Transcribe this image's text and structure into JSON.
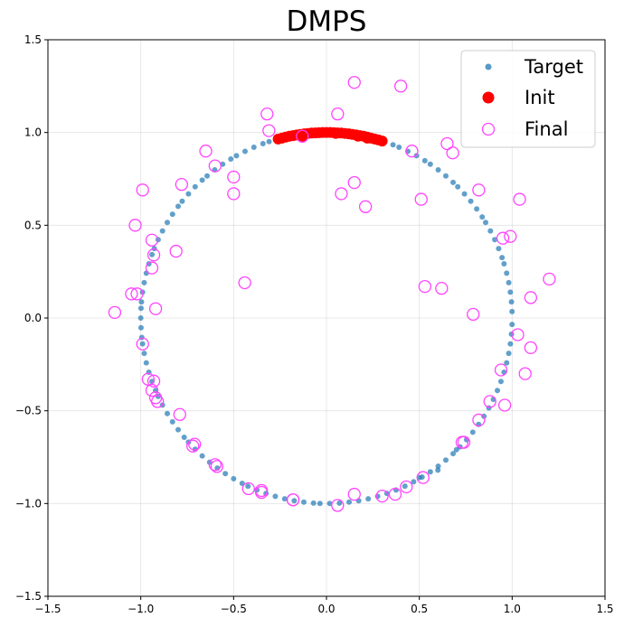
{
  "chart_data": {
    "type": "scatter",
    "title": "DMPS",
    "xlabel": "",
    "ylabel": "",
    "xlim": [
      -1.5,
      1.5
    ],
    "ylim": [
      -1.5,
      1.5
    ],
    "xticks": [
      "−1.5",
      "−1.0",
      "−0.5",
      "0.0",
      "0.5",
      "1.0",
      "1.5"
    ],
    "yticks": [
      "−1.5",
      "−1.0",
      "−0.5",
      "0.0",
      "0.5",
      "1.0",
      "1.5"
    ],
    "xtick_values": [
      -1.5,
      -1.0,
      -0.5,
      0.0,
      0.5,
      1.0,
      1.5
    ],
    "ytick_values": [
      -1.5,
      -1.0,
      -0.5,
      0.0,
      0.5,
      1.0,
      1.5
    ],
    "grid": true,
    "legend_position": "top-right",
    "series": [
      {
        "name": "Target",
        "marker": "small-filled-circle",
        "color": "#1f77b4",
        "target_circle_angles_deg": [
          2,
          5,
          8,
          11,
          14,
          17,
          19,
          22,
          25,
          28,
          31,
          33,
          36,
          39,
          42,
          45,
          47,
          50,
          53,
          56,
          58,
          61,
          64,
          67,
          69,
          72,
          75,
          78,
          80,
          83,
          86,
          88,
          91,
          94,
          97,
          99,
          102,
          105,
          108,
          110,
          113,
          116,
          119,
          121,
          124,
          127,
          130,
          132,
          135,
          138,
          141,
          143,
          146,
          149,
          152,
          155,
          158,
          160,
          163,
          166,
          169,
          172,
          175,
          177,
          180,
          183,
          186,
          188,
          191,
          194,
          197,
          200,
          203,
          205,
          208,
          211,
          214,
          217,
          220,
          222,
          225,
          228,
          231,
          234,
          237,
          240,
          243,
          245,
          248,
          251,
          254,
          257,
          260,
          263,
          266,
          268,
          271,
          274,
          277,
          280,
          283,
          286,
          289,
          292,
          295,
          298,
          301,
          304,
          307,
          310,
          313,
          316,
          319,
          322,
          325,
          328,
          331,
          334,
          337,
          340,
          343,
          346,
          349,
          352,
          355,
          358
        ],
        "points": [
          [
            0.6,
            -0.82
          ],
          [
            0.7,
            -0.71
          ],
          [
            0.5,
            -0.86
          ]
        ]
      },
      {
        "name": "Init",
        "marker": "large-filled-circle",
        "color": "#ff0000",
        "points": [
          [
            -0.26,
            0.965
          ],
          [
            -0.24,
            0.97
          ],
          [
            -0.22,
            0.975
          ],
          [
            -0.2,
            0.98
          ],
          [
            -0.18,
            0.983
          ],
          [
            -0.16,
            0.987
          ],
          [
            -0.14,
            0.99
          ],
          [
            -0.12,
            0.993
          ],
          [
            -0.1,
            0.995
          ],
          [
            -0.08,
            0.997
          ],
          [
            -0.06,
            0.998
          ],
          [
            -0.04,
            0.999
          ],
          [
            -0.02,
            1.0
          ],
          [
            0.0,
            1.0
          ],
          [
            0.02,
            1.0
          ],
          [
            0.04,
            0.999
          ],
          [
            0.06,
            0.998
          ],
          [
            0.08,
            0.997
          ],
          [
            0.1,
            0.995
          ],
          [
            0.12,
            0.993
          ],
          [
            0.14,
            0.99
          ],
          [
            0.16,
            0.987
          ],
          [
            0.18,
            0.983
          ],
          [
            0.2,
            0.98
          ],
          [
            0.22,
            0.975
          ],
          [
            0.24,
            0.97
          ],
          [
            0.26,
            0.965
          ],
          [
            0.28,
            0.96
          ],
          [
            0.3,
            0.954
          ],
          [
            -0.13,
            0.975
          ],
          [
            0.05,
            0.995
          ],
          [
            0.17,
            0.98
          ],
          [
            0.22,
            0.97
          ]
        ]
      },
      {
        "name": "Final",
        "marker": "hollow-circle",
        "color": "#ff44ff",
        "points": [
          [
            -0.13,
            0.98
          ],
          [
            -0.32,
            1.1
          ],
          [
            -0.31,
            1.01
          ],
          [
            0.06,
            1.1
          ],
          [
            0.15,
            1.27
          ],
          [
            0.4,
            1.25
          ],
          [
            0.46,
            0.9
          ],
          [
            0.65,
            0.94
          ],
          [
            0.68,
            0.89
          ],
          [
            0.82,
            0.69
          ],
          [
            1.04,
            0.64
          ],
          [
            0.51,
            0.64
          ],
          [
            0.15,
            0.73
          ],
          [
            0.08,
            0.67
          ],
          [
            0.21,
            0.6
          ],
          [
            -0.5,
            0.76
          ],
          [
            -0.5,
            0.67
          ],
          [
            -0.78,
            0.72
          ],
          [
            -0.65,
            0.9
          ],
          [
            -0.6,
            0.82
          ],
          [
            -0.99,
            0.69
          ],
          [
            -1.03,
            0.5
          ],
          [
            -0.94,
            0.42
          ],
          [
            -0.93,
            0.34
          ],
          [
            -0.94,
            0.27
          ],
          [
            -0.81,
            0.36
          ],
          [
            -1.05,
            0.13
          ],
          [
            -1.02,
            0.13
          ],
          [
            -1.14,
            0.03
          ],
          [
            -0.92,
            0.05
          ],
          [
            -0.44,
            0.19
          ],
          [
            0.53,
            0.17
          ],
          [
            0.62,
            0.16
          ],
          [
            0.79,
            0.02
          ],
          [
            0.95,
            0.43
          ],
          [
            0.99,
            0.44
          ],
          [
            1.2,
            0.21
          ],
          [
            1.1,
            0.11
          ],
          [
            1.03,
            -0.09
          ],
          [
            1.1,
            -0.16
          ],
          [
            1.07,
            -0.3
          ],
          [
            0.94,
            -0.28
          ],
          [
            0.96,
            -0.47
          ],
          [
            0.88,
            -0.45
          ],
          [
            0.82,
            -0.55
          ],
          [
            0.73,
            -0.67
          ],
          [
            0.74,
            -0.67
          ],
          [
            0.52,
            -0.86
          ],
          [
            0.43,
            -0.91
          ],
          [
            0.37,
            -0.95
          ],
          [
            0.3,
            -0.96
          ],
          [
            0.15,
            -0.95
          ],
          [
            0.06,
            -1.01
          ],
          [
            -0.18,
            -0.98
          ],
          [
            -0.18,
            -0.98
          ],
          [
            -0.35,
            -0.94
          ],
          [
            -0.35,
            -0.93
          ],
          [
            -0.42,
            -0.92
          ],
          [
            -0.59,
            -0.8
          ],
          [
            -0.6,
            -0.79
          ],
          [
            -0.71,
            -0.68
          ],
          [
            -0.72,
            -0.69
          ],
          [
            -0.79,
            -0.52
          ],
          [
            -0.91,
            -0.45
          ],
          [
            -0.92,
            -0.43
          ],
          [
            -0.94,
            -0.39
          ],
          [
            -0.93,
            -0.34
          ],
          [
            -0.96,
            -0.33
          ],
          [
            -0.99,
            -0.14
          ]
        ]
      }
    ]
  }
}
